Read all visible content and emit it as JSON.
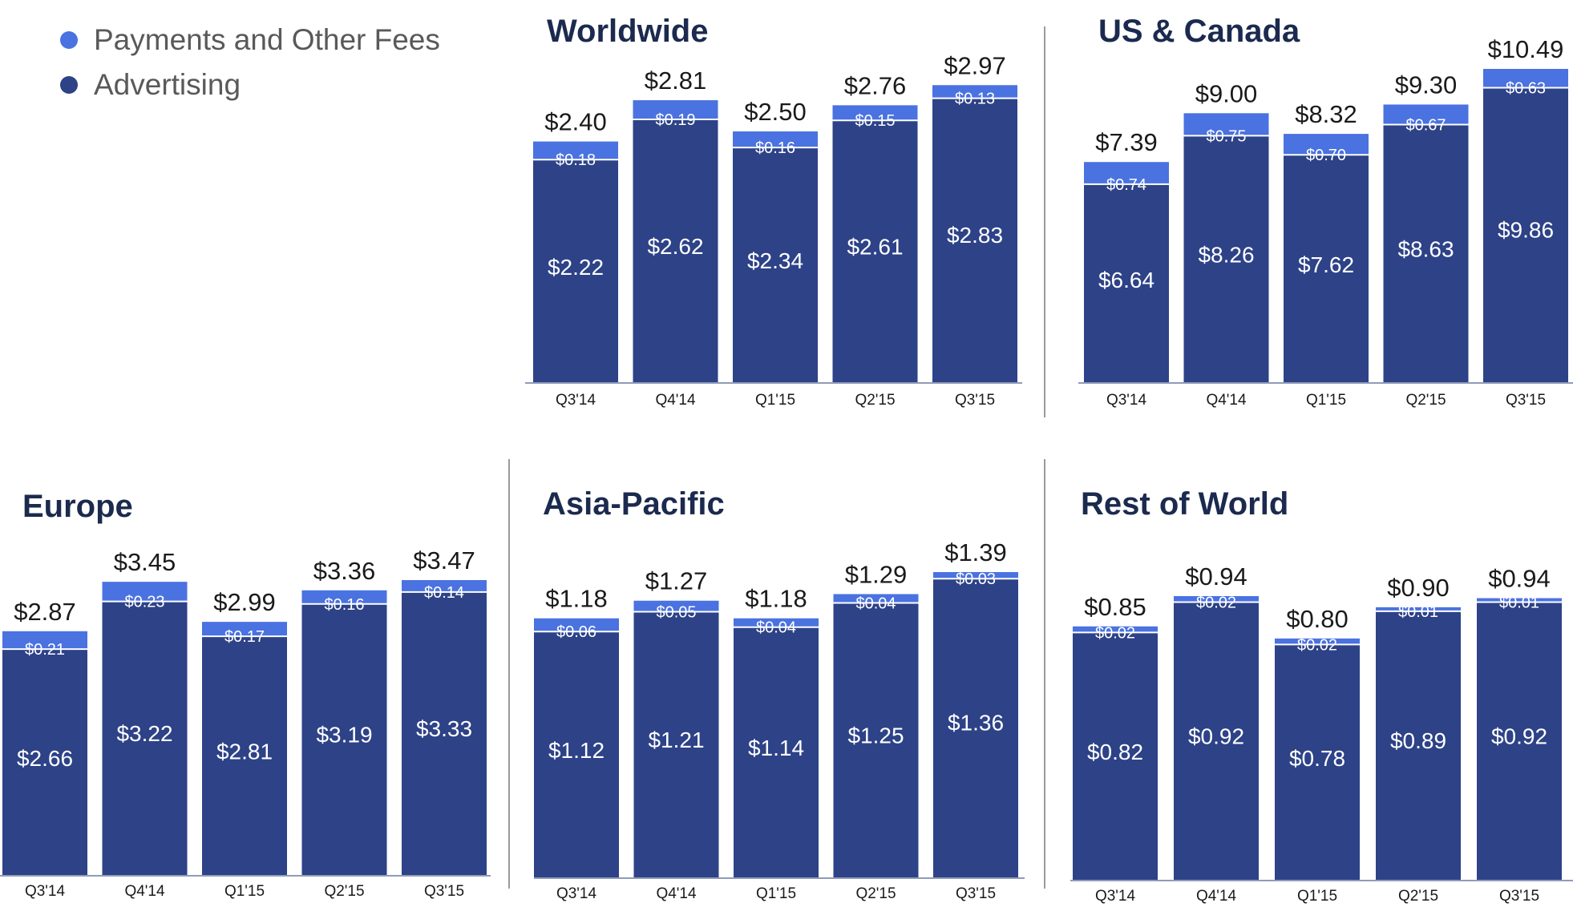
{
  "legend": {
    "items": [
      {
        "label": "Payments and Other Fees",
        "color": "#4a72e0"
      },
      {
        "label": "Advertising",
        "color": "#2d4287"
      }
    ]
  },
  "colors": {
    "payments": "#4a72e0",
    "advertising": "#2d4287",
    "title": "#1b2a4e",
    "text": "#1a1a1a"
  },
  "chart_data": [
    {
      "type": "bar",
      "stacked": true,
      "title": "Worldwide",
      "categories": [
        "Q3'14",
        "Q4'14",
        "Q1'15",
        "Q2'15",
        "Q3'15"
      ],
      "totals": [
        "$2.40",
        "$2.81",
        "$2.50",
        "$2.76",
        "$2.97"
      ],
      "series": [
        {
          "name": "Advertising",
          "values": [
            2.22,
            2.62,
            2.34,
            2.61,
            2.83
          ],
          "labels": [
            "$2.22",
            "$2.62",
            "$2.34",
            "$2.61",
            "$2.83"
          ]
        },
        {
          "name": "Payments and Other Fees",
          "values": [
            0.18,
            0.19,
            0.16,
            0.15,
            0.13
          ],
          "labels": [
            "$0.18",
            "$0.19",
            "$0.16",
            "$0.15",
            "$0.13"
          ]
        }
      ],
      "ylim": [
        0,
        2.97
      ]
    },
    {
      "type": "bar",
      "stacked": true,
      "title": "US & Canada",
      "categories": [
        "Q3'14",
        "Q4'14",
        "Q1'15",
        "Q2'15",
        "Q3'15"
      ],
      "totals": [
        "$7.39",
        "$9.00",
        "$8.32",
        "$9.30",
        "$10.49"
      ],
      "series": [
        {
          "name": "Advertising",
          "values": [
            6.64,
            8.26,
            7.62,
            8.63,
            9.86
          ],
          "labels": [
            "$6.64",
            "$8.26",
            "$7.62",
            "$8.63",
            "$9.86"
          ]
        },
        {
          "name": "Payments and Other Fees",
          "values": [
            0.74,
            0.75,
            0.7,
            0.67,
            0.63
          ],
          "labels": [
            "$0.74",
            "$0.75",
            "$0.70",
            "$0.67",
            "$0.63"
          ]
        }
      ],
      "ylim": [
        0,
        10.49
      ]
    },
    {
      "type": "bar",
      "stacked": true,
      "title": "Europe",
      "categories": [
        "Q3'14",
        "Q4'14",
        "Q1'15",
        "Q2'15",
        "Q3'15"
      ],
      "totals": [
        "$2.87",
        "$3.45",
        "$2.99",
        "$3.36",
        "$3.47"
      ],
      "series": [
        {
          "name": "Advertising",
          "values": [
            2.66,
            3.22,
            2.81,
            3.19,
            3.33
          ],
          "labels": [
            "$2.66",
            "$3.22",
            "$2.81",
            "$3.19",
            "$3.33"
          ]
        },
        {
          "name": "Payments and Other Fees",
          "values": [
            0.21,
            0.23,
            0.17,
            0.16,
            0.14
          ],
          "labels": [
            "$0.21",
            "$0.23",
            "$0.17",
            "$0.16",
            "$0.14"
          ]
        }
      ],
      "ylim": [
        0,
        3.47
      ]
    },
    {
      "type": "bar",
      "stacked": true,
      "title": "Asia-Pacific",
      "categories": [
        "Q3'14",
        "Q4'14",
        "Q1'15",
        "Q2'15",
        "Q3'15"
      ],
      "totals": [
        "$1.18",
        "$1.27",
        "$1.18",
        "$1.29",
        "$1.39"
      ],
      "series": [
        {
          "name": "Advertising",
          "values": [
            1.12,
            1.21,
            1.14,
            1.25,
            1.36
          ],
          "labels": [
            "$1.12",
            "$1.21",
            "$1.14",
            "$1.25",
            "$1.36"
          ]
        },
        {
          "name": "Payments and Other Fees",
          "values": [
            0.06,
            0.05,
            0.04,
            0.04,
            0.03
          ],
          "labels": [
            "$0.06",
            "$0.05",
            "$0.04",
            "$0.04",
            "$0.03"
          ]
        }
      ],
      "ylim": [
        0,
        1.39
      ]
    },
    {
      "type": "bar",
      "stacked": true,
      "title": "Rest of World",
      "categories": [
        "Q3'14",
        "Q4'14",
        "Q1'15",
        "Q2'15",
        "Q3'15"
      ],
      "totals": [
        "$0.85",
        "$0.94",
        "$0.80",
        "$0.90",
        "$0.94"
      ],
      "series": [
        {
          "name": "Advertising",
          "values": [
            0.82,
            0.92,
            0.78,
            0.89,
            0.92
          ],
          "labels": [
            "$0.82",
            "$0.92",
            "$0.78",
            "$0.89",
            "$0.92"
          ]
        },
        {
          "name": "Payments and Other Fees",
          "values": [
            0.02,
            0.02,
            0.02,
            0.01,
            0.01
          ],
          "labels": [
            "$0.02",
            "$0.02",
            "$0.02",
            "$0.01",
            "$0.01"
          ]
        }
      ],
      "ylim": [
        0,
        0.94
      ]
    }
  ]
}
